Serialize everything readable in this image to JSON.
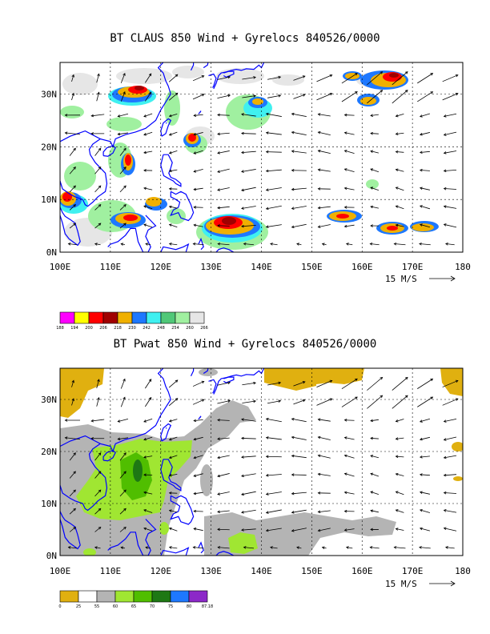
{
  "panels": [
    {
      "id": "top",
      "title": "BT CLAUS 850 Wind + Gyrelocs 840526/0000",
      "lat_labels": [
        "30N",
        "20N",
        "10N",
        "0N"
      ],
      "lon_labels": [
        "100E",
        "110E",
        "120E",
        "130E",
        "140E",
        "150E",
        "160E",
        "170E",
        "180"
      ],
      "reference_vector": "15 M/S",
      "colorbar": {
        "colors": [
          "#ff00ff",
          "#ffff00",
          "#ff0000",
          "#a00000",
          "#f0b000",
          "#1e78ff",
          "#40f0f0",
          "#50c878",
          "#a0f0a0",
          "#e6e6e6"
        ],
        "labels": [
          "188",
          "194",
          "200",
          "206",
          "218",
          "230",
          "242",
          "248",
          "254",
          "260",
          "266"
        ]
      }
    },
    {
      "id": "bottom",
      "title": "BT Pwat 850 Wind + Gyrelocs 840526/0000",
      "lat_labels": [
        "30N",
        "20N",
        "10N",
        "0N"
      ],
      "lon_labels": [
        "100E",
        "110E",
        "120E",
        "130E",
        "140E",
        "150E",
        "160E",
        "170E",
        "180"
      ],
      "reference_vector": "15 M/S",
      "colorbar": {
        "colors": [
          "#e0b010",
          "#ffffff",
          "#b4b4b4",
          "#a0e632",
          "#50be00",
          "#1e7814",
          "#1e78ff",
          "#8c28c8"
        ],
        "labels": [
          "0",
          "25",
          "55",
          "60",
          "65",
          "70",
          "75",
          "80",
          "87.18"
        ]
      }
    }
  ],
  "colors": {
    "coastline": "#0000ff",
    "frame": "#000000"
  }
}
